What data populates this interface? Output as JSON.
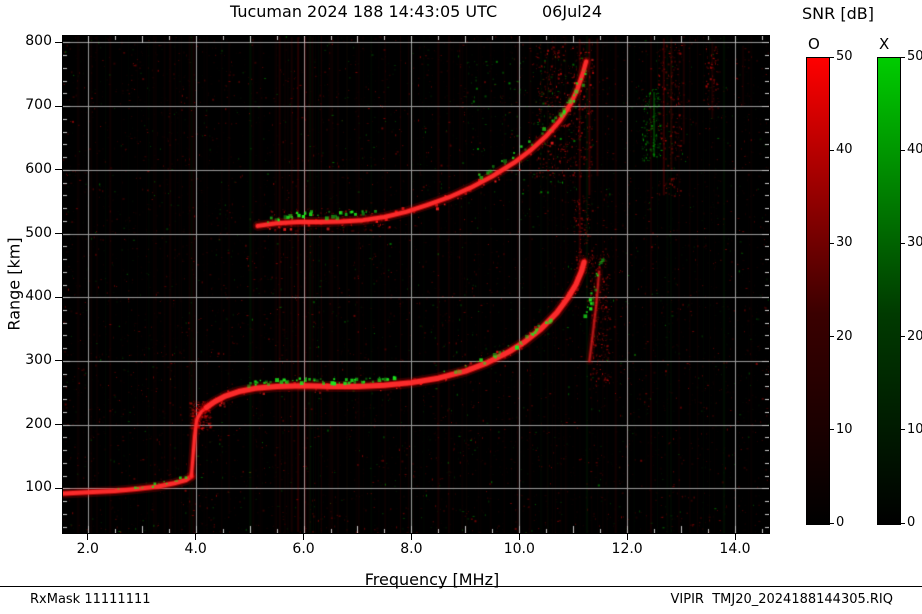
{
  "header": {
    "title": "Tucuman 2024 188 14:43:05 UTC",
    "date": "06Jul24"
  },
  "axes": {
    "x_label": "Frequency [MHz]",
    "y_label": "Range [km]",
    "x_ticks": [
      "2.0",
      "4.0",
      "6.0",
      "8.0",
      "10.0",
      "12.0",
      "14.0"
    ],
    "y_ticks": [
      "100",
      "200",
      "300",
      "400",
      "500",
      "600",
      "700",
      "800"
    ]
  },
  "colorbar": {
    "title": "SNR [dB]",
    "bars": [
      {
        "label": "O",
        "top_color": "#ff0000",
        "gradient": [
          "#000000",
          "#3a0000",
          "#ff0000"
        ],
        "ticks": [
          50,
          40,
          30,
          20,
          10,
          0
        ]
      },
      {
        "label": "X",
        "top_color": "#00cc00",
        "gradient": [
          "#000000",
          "#003a00",
          "#00cc00"
        ],
        "ticks": [
          50,
          40,
          30,
          20,
          10,
          0
        ]
      }
    ]
  },
  "footer": {
    "left": "RxMask 11111111",
    "right": "VIPIR  TMJ20_2024188144305.RIQ"
  },
  "chart_data": {
    "type": "heatmap",
    "title": "Tucuman 2024 188 14:43:05 UTC 06Jul24",
    "xlabel": "Frequency [MHz]",
    "ylabel": "Range [km]",
    "xlim": [
      1.54,
      14.63
    ],
    "ylim": [
      30,
      810
    ],
    "x_tick_values": [
      2,
      4,
      6,
      8,
      10,
      12,
      14
    ],
    "y_tick_values": [
      100,
      200,
      300,
      400,
      500,
      600,
      700,
      800
    ],
    "snr_scale": {
      "min": 0,
      "max": 50,
      "units": "dB",
      "modes": [
        "O",
        "X"
      ]
    },
    "noise": {
      "seed": 1337,
      "dots": 6500,
      "columns": 130
    },
    "streaks": [
      {
        "f": 5.78,
        "r0": 32,
        "r1": 808,
        "a": 0.08
      },
      {
        "f": 5.9,
        "r0": 32,
        "r1": 808,
        "a": 0.14
      },
      {
        "f": 6.03,
        "r0": 32,
        "r1": 808,
        "a": 0.09
      },
      {
        "f": 6.16,
        "r0": 200,
        "r1": 808,
        "a": 0.05
      },
      {
        "f": 5.55,
        "r0": 300,
        "r1": 808,
        "a": 0.05
      },
      {
        "f": 11.12,
        "r0": 430,
        "r1": 805,
        "a": 0.16
      },
      {
        "f": 11.3,
        "r0": 560,
        "r1": 806,
        "a": 0.2
      },
      {
        "f": 11.45,
        "r0": 590,
        "r1": 806,
        "a": 0.14
      },
      {
        "f": 12.68,
        "r0": 560,
        "r1": 806,
        "a": 0.18
      },
      {
        "f": 12.82,
        "r0": 600,
        "r1": 806,
        "a": 0.12
      },
      {
        "f": 13.05,
        "r0": 640,
        "r1": 800,
        "a": 0.1
      },
      {
        "f": 13.58,
        "r0": 680,
        "r1": 800,
        "a": 0.1
      },
      {
        "f": 14.15,
        "r0": 700,
        "r1": 795,
        "a": 0.06
      },
      {
        "f": 12.5,
        "r0": 620,
        "r1": 722,
        "a": 0.25,
        "mode": "X"
      },
      {
        "f": 4.62,
        "r0": 60,
        "r1": 800,
        "a": 0.04
      },
      {
        "f": 8.9,
        "r0": 400,
        "r1": 800,
        "a": 0.04
      }
    ],
    "clouds": [
      {
        "f0": 3.88,
        "f1": 4.28,
        "r0": 192,
        "r1": 238,
        "n": 260,
        "mode": "O"
      },
      {
        "f0": 10.3,
        "f1": 11.35,
        "r0": 590,
        "r1": 800,
        "n": 430,
        "mode": "O"
      },
      {
        "f0": 11.3,
        "f1": 11.68,
        "r0": 260,
        "r1": 480,
        "n": 240,
        "mode": "O"
      },
      {
        "f0": 11.0,
        "f1": 11.3,
        "r0": 430,
        "r1": 560,
        "n": 130,
        "mode": "O"
      },
      {
        "f0": 12.25,
        "f1": 12.62,
        "r0": 615,
        "r1": 728,
        "n": 120,
        "mode": "X"
      },
      {
        "f0": 12.55,
        "f1": 13.0,
        "r0": 560,
        "r1": 800,
        "n": 200,
        "mode": "O"
      },
      {
        "f0": 13.45,
        "f1": 13.68,
        "r0": 690,
        "r1": 795,
        "n": 70,
        "mode": "O"
      },
      {
        "f0": 5.3,
        "f1": 7.6,
        "r0": 505,
        "r1": 540,
        "n": 150,
        "mode": "O"
      },
      {
        "f0": 9.0,
        "f1": 11.2,
        "r0": 560,
        "r1": 780,
        "n": 120,
        "mode": "X"
      }
    ],
    "traces": [
      {
        "name": "F-trace O-mode fuzz",
        "mode": "O",
        "style": "speckle",
        "density": 0.3,
        "size": 2,
        "jitter": 11,
        "points": [
          [
            4.2,
            227
          ],
          [
            4.8,
            252
          ],
          [
            5.5,
            260
          ],
          [
            6.5,
            260
          ],
          [
            7.5,
            262
          ],
          [
            8.5,
            273
          ],
          [
            9.4,
            297
          ],
          [
            10.1,
            330
          ],
          [
            10.7,
            376
          ],
          [
            11.05,
            420
          ],
          [
            11.2,
            455
          ]
        ]
      },
      {
        "name": "second-hop O-mode fuzz",
        "mode": "O",
        "style": "speckle",
        "density": 0.32,
        "size": 2,
        "jitter": 12,
        "points": [
          [
            5.15,
            512
          ],
          [
            5.9,
            518
          ],
          [
            6.7,
            519
          ],
          [
            7.5,
            526
          ],
          [
            8.3,
            545
          ],
          [
            9.1,
            572
          ],
          [
            9.9,
            611
          ],
          [
            10.5,
            653
          ],
          [
            10.95,
            703
          ],
          [
            11.24,
            770
          ]
        ]
      },
      {
        "name": "E-layer O-mode",
        "mode": "O",
        "style": "solid",
        "w": 4,
        "points": [
          [
            1.55,
            92
          ],
          [
            2.0,
            94
          ],
          [
            2.5,
            96
          ],
          [
            2.9,
            99
          ],
          [
            3.3,
            103
          ],
          [
            3.6,
            108
          ],
          [
            3.82,
            113
          ],
          [
            3.92,
            119
          ]
        ]
      },
      {
        "name": "E-F cusp O-mode",
        "mode": "O",
        "style": "solid",
        "w": 3,
        "points": [
          [
            3.92,
            119
          ],
          [
            3.95,
            150
          ],
          [
            3.98,
            182
          ],
          [
            4.02,
            208
          ],
          [
            4.1,
            220
          ],
          [
            4.2,
            227
          ]
        ]
      },
      {
        "name": "F-trace O-mode",
        "mode": "O",
        "style": "solid",
        "w": 5,
        "points": [
          [
            4.2,
            227
          ],
          [
            4.35,
            236
          ],
          [
            4.55,
            245
          ],
          [
            4.8,
            252
          ],
          [
            5.1,
            257
          ],
          [
            5.5,
            260
          ],
          [
            6.0,
            261
          ],
          [
            6.5,
            260
          ],
          [
            7.0,
            260
          ],
          [
            7.5,
            262
          ],
          [
            8.0,
            266
          ],
          [
            8.5,
            273
          ],
          [
            9.0,
            284
          ],
          [
            9.4,
            297
          ],
          [
            9.8,
            314
          ],
          [
            10.1,
            330
          ],
          [
            10.4,
            350
          ],
          [
            10.7,
            376
          ],
          [
            10.9,
            399
          ],
          [
            11.05,
            420
          ],
          [
            11.15,
            440
          ],
          [
            11.2,
            455
          ]
        ]
      },
      {
        "name": "spread-F spike O-mode",
        "mode": "O",
        "style": "solid",
        "w": 2,
        "dim": 0.55,
        "points": [
          [
            11.3,
            300
          ],
          [
            11.36,
            340
          ],
          [
            11.43,
            390
          ],
          [
            11.48,
            440
          ]
        ]
      },
      {
        "name": "second-hop O-mode",
        "mode": "O",
        "style": "solid",
        "w": 4,
        "points": [
          [
            5.15,
            512
          ],
          [
            5.5,
            516
          ],
          [
            5.9,
            518
          ],
          [
            6.3,
            518
          ],
          [
            6.7,
            519
          ],
          [
            7.1,
            521
          ],
          [
            7.5,
            526
          ],
          [
            7.9,
            534
          ],
          [
            8.3,
            545
          ],
          [
            8.7,
            557
          ],
          [
            9.1,
            572
          ],
          [
            9.5,
            590
          ],
          [
            9.9,
            611
          ],
          [
            10.2,
            630
          ],
          [
            10.5,
            653
          ],
          [
            10.75,
            677
          ],
          [
            10.95,
            703
          ],
          [
            11.08,
            727
          ],
          [
            11.18,
            752
          ],
          [
            11.24,
            770
          ]
        ]
      },
      {
        "name": "E-layer X-mode",
        "mode": "X",
        "style": "speckle",
        "density": 0.45,
        "size": 2,
        "jitter": 4,
        "points": [
          [
            2.55,
            100
          ],
          [
            2.95,
            104
          ],
          [
            3.3,
            109
          ],
          [
            3.6,
            114
          ],
          [
            3.78,
            119
          ]
        ]
      },
      {
        "name": "F-flat X-mode",
        "mode": "X",
        "style": "speckle",
        "density": 0.75,
        "size": 3,
        "jitter": 5,
        "points": [
          [
            4.95,
            266
          ],
          [
            5.35,
            269
          ],
          [
            5.75,
            271
          ],
          [
            6.15,
            271
          ],
          [
            6.55,
            270
          ],
          [
            6.95,
            270
          ],
          [
            7.35,
            272
          ],
          [
            7.7,
            274
          ]
        ]
      },
      {
        "name": "F-rise X-mode",
        "mode": "X",
        "style": "speckle",
        "density": 0.5,
        "size": 3,
        "jitter": 5,
        "points": [
          [
            8.5,
            279
          ],
          [
            8.9,
            289
          ],
          [
            9.3,
            301
          ],
          [
            9.7,
            316
          ],
          [
            10.0,
            331
          ],
          [
            10.3,
            349
          ],
          [
            10.55,
            367
          ]
        ]
      },
      {
        "name": "F-asymptote X-mode",
        "mode": "X",
        "style": "speckle",
        "density": 0.8,
        "size": 3,
        "jitter": 4,
        "points": [
          [
            11.22,
            373
          ],
          [
            11.3,
            394
          ],
          [
            11.38,
            417
          ],
          [
            11.45,
            441
          ],
          [
            11.5,
            464
          ]
        ]
      },
      {
        "name": "second-hop-flat X-mode",
        "mode": "X",
        "style": "speckle",
        "density": 0.7,
        "size": 3,
        "jitter": 6,
        "points": [
          [
            5.35,
            524
          ],
          [
            5.75,
            529
          ],
          [
            6.15,
            532
          ],
          [
            6.55,
            531
          ],
          [
            6.95,
            533
          ],
          [
            7.3,
            535
          ]
        ]
      },
      {
        "name": "second-hop-rise X-mode",
        "mode": "X",
        "style": "speckle",
        "density": 0.6,
        "size": 3,
        "jitter": 7,
        "points": [
          [
            9.2,
            592
          ],
          [
            9.55,
            608
          ],
          [
            9.9,
            627
          ],
          [
            10.2,
            646
          ],
          [
            10.5,
            668
          ],
          [
            10.75,
            691
          ],
          [
            10.95,
            713
          ],
          [
            11.08,
            733
          ],
          [
            11.17,
            753
          ],
          [
            11.23,
            768
          ]
        ]
      }
    ]
  }
}
